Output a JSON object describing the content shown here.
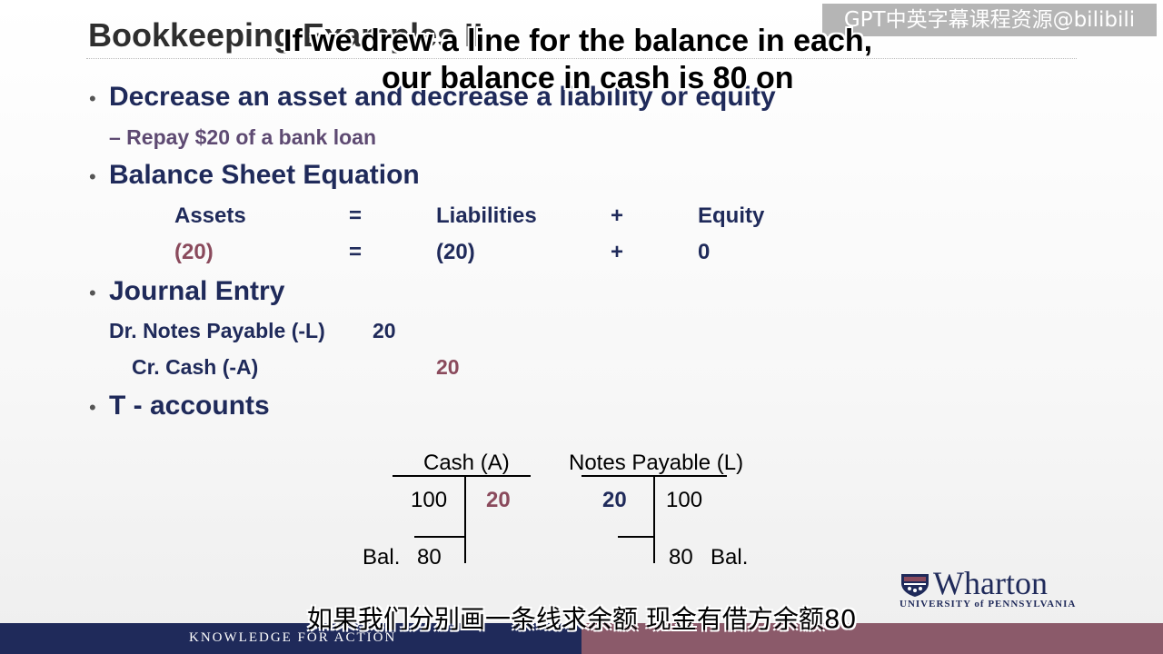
{
  "slide": {
    "title": "Bookkeeping Examples II",
    "bullets": {
      "b1": "Decrease an asset and decrease a liability or equity",
      "b1_sub": "– Repay $20 of a bank loan",
      "b2": "Balance Sheet Equation",
      "b3": "Journal Entry",
      "b4": "T - accounts"
    },
    "equation": {
      "headers": [
        "Assets",
        "=",
        "Liabilities",
        "+",
        "Equity"
      ],
      "values": [
        "(20)",
        "=",
        "(20)",
        "+",
        "0"
      ]
    },
    "journal": {
      "debit_label": "Dr. Notes Payable (-L)",
      "debit_amount": "20",
      "credit_label": "Cr. Cash (-A)",
      "credit_amount": "20"
    },
    "t_accounts": {
      "cash": {
        "title": "Cash (A)",
        "debit": "100",
        "credit": "20",
        "bal_label": "Bal.",
        "bal_value": "80"
      },
      "notes": {
        "title": "Notes Payable (L)",
        "debit": "20",
        "credit": "100",
        "bal_value": "80",
        "bal_label": "Bal."
      }
    }
  },
  "subtitles": {
    "en_line1": "If we drew a line for the balance in each,",
    "en_line2": "our balance in cash is 80 on",
    "zh": "如果我们分别画一条线求余额 现金有借方余额80"
  },
  "watermark": "GPT中英字幕课程资源@bilibili",
  "logo": {
    "name": "Wharton",
    "university": "UNIVERSITY of PENNSYLVANIA"
  },
  "footer": {
    "tagline": "KNOWLEDGE FOR ACTION"
  },
  "colors": {
    "navy": "#1f2a5a",
    "maroon": "#8a4a5c",
    "footer_left": "#1f2a5a",
    "footer_right": "#8b5a6a"
  }
}
